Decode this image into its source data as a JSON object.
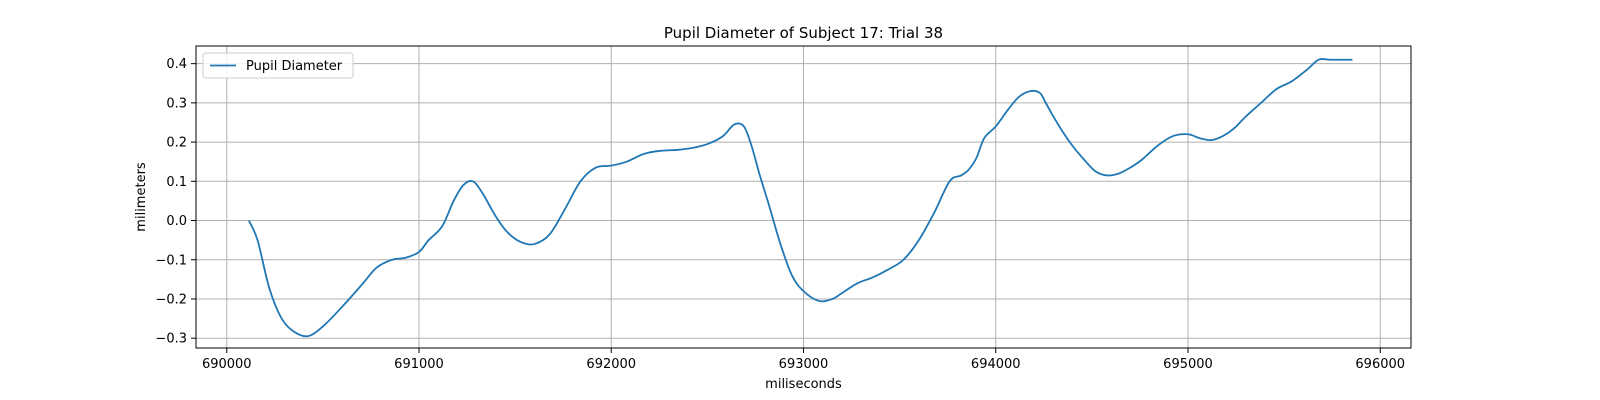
{
  "chart_data": {
    "type": "line",
    "title": "Pupil Diameter of Subject 17: Trial 38",
    "xlabel": "miliseconds",
    "ylabel": "milimeters",
    "xlim": [
      689840,
      696160
    ],
    "ylim": [
      -0.325,
      0.445
    ],
    "xticks": [
      690000,
      691000,
      692000,
      693000,
      694000,
      695000,
      696000
    ],
    "xtick_labels": [
      "690000",
      "691000",
      "692000",
      "693000",
      "694000",
      "695000",
      "696000"
    ],
    "yticks": [
      -0.3,
      -0.2,
      -0.1,
      0.0,
      0.1,
      0.2,
      0.3,
      0.4
    ],
    "ytick_labels": [
      "−0.3",
      "−0.2",
      "−0.1",
      "0.0",
      "0.1",
      "0.2",
      "0.3",
      "0.4"
    ],
    "grid": true,
    "legend_position": "upper-left",
    "line_color": "#1f77b4",
    "series": [
      {
        "name": "Pupil Diameter",
        "x": [
          690115,
          690160,
          690220,
          690280,
          690340,
          690420,
          690500,
          690600,
          690700,
          690780,
          690860,
          690930,
          691000,
          691050,
          691120,
          691180,
          691230,
          691280,
          691330,
          691400,
          691460,
          691530,
          691600,
          691680,
          691760,
          691840,
          691920,
          692000,
          692080,
          692170,
          692260,
          692340,
          692420,
          692500,
          692580,
          692640,
          692690,
          692730,
          692770,
          692820,
          692880,
          692940,
          693000,
          693080,
          693150,
          693200,
          693280,
          693360,
          693440,
          693520,
          693600,
          693680,
          693760,
          693820,
          693860,
          693900,
          693940,
          694000,
          694060,
          694120,
          694180,
          694230,
          694260,
          694300,
          694350,
          694400,
          694460,
          694520,
          694580,
          694640,
          694700,
          694760,
          694840,
          694920,
          695000,
          695060,
          695120,
          695180,
          695240,
          695300,
          695380,
          695460,
          695540,
          695620,
          695680,
          695740,
          695800,
          695855
        ],
        "y": [
          0.0,
          -0.05,
          -0.17,
          -0.245,
          -0.28,
          -0.295,
          -0.27,
          -0.22,
          -0.165,
          -0.12,
          -0.1,
          -0.095,
          -0.08,
          -0.05,
          -0.015,
          0.05,
          0.09,
          0.1,
          0.07,
          0.01,
          -0.03,
          -0.055,
          -0.06,
          -0.035,
          0.03,
          0.1,
          0.135,
          0.14,
          0.15,
          0.17,
          0.178,
          0.18,
          0.185,
          0.195,
          0.215,
          0.245,
          0.24,
          0.19,
          0.12,
          0.04,
          -0.06,
          -0.14,
          -0.18,
          -0.205,
          -0.2,
          -0.185,
          -0.16,
          -0.145,
          -0.125,
          -0.1,
          -0.05,
          0.02,
          0.1,
          0.115,
          0.13,
          0.16,
          0.21,
          0.24,
          0.28,
          0.315,
          0.33,
          0.325,
          0.3,
          0.265,
          0.225,
          0.19,
          0.155,
          0.125,
          0.115,
          0.12,
          0.135,
          0.155,
          0.19,
          0.215,
          0.22,
          0.21,
          0.205,
          0.215,
          0.235,
          0.265,
          0.3,
          0.335,
          0.355,
          0.385,
          0.41,
          0.41,
          0.41,
          0.41
        ]
      }
    ]
  }
}
